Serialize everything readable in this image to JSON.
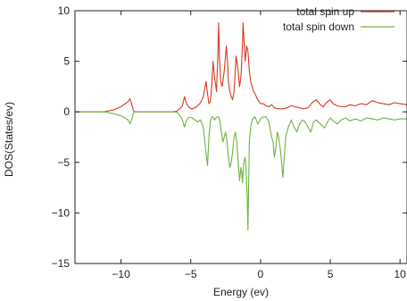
{
  "chart_data": {
    "type": "line",
    "title": "",
    "xlabel": "Energy (ev)",
    "ylabel": "DOS(States/ev)",
    "xlim": [
      -13.3,
      10.5
    ],
    "ylim": [
      -15,
      10
    ],
    "xticks": [
      -10,
      -5,
      0,
      5,
      10
    ],
    "yticks": [
      -15,
      -10,
      -5,
      0,
      5,
      10
    ],
    "grid": false,
    "legend": "top-right",
    "series": [
      {
        "name": "total spin up",
        "color": "#d43a1e",
        "x": [
          -13.3,
          -11.2,
          -10.5,
          -10.0,
          -9.7,
          -9.5,
          -9.35,
          -9.2,
          -9.1,
          -9.0,
          -8.9,
          -7.0,
          -6.3,
          -6.0,
          -5.8,
          -5.6,
          -5.45,
          -5.3,
          -5.1,
          -4.9,
          -4.7,
          -4.5,
          -4.3,
          -4.1,
          -3.9,
          -3.8,
          -3.7,
          -3.6,
          -3.5,
          -3.4,
          -3.3,
          -3.15,
          -3.05,
          -3.0,
          -2.95,
          -2.85,
          -2.75,
          -2.6,
          -2.45,
          -2.35,
          -2.3,
          -2.2,
          -2.1,
          -2.0,
          -1.9,
          -1.75,
          -1.6,
          -1.5,
          -1.4,
          -1.3,
          -1.25,
          -1.2,
          -1.1,
          -1.0,
          -0.9,
          -0.8,
          -0.7,
          -0.6,
          -0.5,
          -0.4,
          -0.3,
          -0.2,
          -0.1,
          0.0,
          0.2,
          0.4,
          0.6,
          0.8,
          1.0,
          1.3,
          1.6,
          1.9,
          2.2,
          2.5,
          2.8,
          3.1,
          3.4,
          3.7,
          4.0,
          4.3,
          4.5,
          4.6,
          4.8,
          5.0,
          5.2,
          5.5,
          5.8,
          6.1,
          6.4,
          6.8,
          7.2,
          7.6,
          8.0,
          8.4,
          8.8,
          9.2,
          9.6,
          10.0,
          10.5
        ],
        "y": [
          0,
          0,
          0.2,
          0.5,
          0.8,
          1.0,
          1.3,
          0.6,
          0.1,
          0,
          0,
          0,
          0,
          0.05,
          0.3,
          0.6,
          1.5,
          0.8,
          0.4,
          0.3,
          0.4,
          0.6,
          0.9,
          1.5,
          3.0,
          1.8,
          0.8,
          1.0,
          2.5,
          5.0,
          3.5,
          2.0,
          6.0,
          8.8,
          5.5,
          3.0,
          2.5,
          4.0,
          6.5,
          4.5,
          3.0,
          2.0,
          1.5,
          1.2,
          2.0,
          5.5,
          4.0,
          2.5,
          3.5,
          6.5,
          8.8,
          7.5,
          5.0,
          6.5,
          6.0,
          4.0,
          3.0,
          2.5,
          2.0,
          1.8,
          1.5,
          1.2,
          1.0,
          0.8,
          0.8,
          0.6,
          0.5,
          0.7,
          0.4,
          0.3,
          0.3,
          0.4,
          0.6,
          0.5,
          0.4,
          0.3,
          0.4,
          0.9,
          1.2,
          0.7,
          0.5,
          0.7,
          1.0,
          1.2,
          0.8,
          0.6,
          0.5,
          0.5,
          0.7,
          0.6,
          0.8,
          0.7,
          1.1,
          0.9,
          0.8,
          0.7,
          0.9,
          0.8,
          0.7
        ]
      },
      {
        "name": "total spin down",
        "color": "#6db33f",
        "x": [
          -13.3,
          -11.2,
          -10.5,
          -10.0,
          -9.7,
          -9.5,
          -9.35,
          -9.2,
          -9.1,
          -9.0,
          -8.9,
          -7.0,
          -6.3,
          -6.0,
          -5.8,
          -5.6,
          -5.45,
          -5.3,
          -5.1,
          -4.9,
          -4.7,
          -4.5,
          -4.3,
          -4.1,
          -3.95,
          -3.8,
          -3.7,
          -3.6,
          -3.5,
          -3.4,
          -3.3,
          -3.2,
          -3.1,
          -3.0,
          -2.9,
          -2.8,
          -2.7,
          -2.6,
          -2.5,
          -2.4,
          -2.3,
          -2.2,
          -2.1,
          -2.0,
          -1.9,
          -1.8,
          -1.7,
          -1.6,
          -1.5,
          -1.4,
          -1.35,
          -1.3,
          -1.2,
          -1.1,
          -1.05,
          -1.0,
          -0.95,
          -0.9,
          -0.85,
          -0.8,
          -0.7,
          -0.6,
          -0.5,
          -0.4,
          -0.3,
          -0.2,
          -0.1,
          0.0,
          0.2,
          0.4,
          0.6,
          0.8,
          0.9,
          1.0,
          1.1,
          1.2,
          1.3,
          1.45,
          1.6,
          1.7,
          1.8,
          1.9,
          2.0,
          2.2,
          2.4,
          2.6,
          2.8,
          3.0,
          3.2,
          3.4,
          3.6,
          3.8,
          4.0,
          4.3,
          4.6,
          4.8,
          5.0,
          5.2,
          5.5,
          5.8,
          6.1,
          6.4,
          6.8,
          7.2,
          7.6,
          8.0,
          8.4,
          8.8,
          9.2,
          9.6,
          10.0,
          10.5
        ],
        "y": [
          0,
          0,
          -0.2,
          -0.4,
          -0.6,
          -0.8,
          -1.2,
          -0.6,
          -0.1,
          0,
          0,
          0,
          0,
          -0.05,
          -0.3,
          -0.8,
          -1.5,
          -0.8,
          -0.5,
          -0.6,
          -0.8,
          -1.0,
          -0.8,
          -1.5,
          -3.5,
          -5.3,
          -2.5,
          -1.0,
          -0.5,
          -0.5,
          -0.8,
          -0.6,
          -0.5,
          -0.5,
          -1.0,
          -2.0,
          -3.0,
          -2.5,
          -2.0,
          -3.0,
          -4.5,
          -5.5,
          -5.0,
          -4.0,
          -2.5,
          -2.0,
          -3.0,
          -5.0,
          -6.8,
          -5.5,
          -6.0,
          -7.0,
          -5.0,
          -4.5,
          -5.5,
          -7.0,
          -8.5,
          -11.7,
          -7.0,
          -3.0,
          -1.5,
          -0.8,
          -0.6,
          -0.5,
          -0.8,
          -1.2,
          -1.0,
          -0.7,
          -0.5,
          -0.5,
          -1.0,
          -2.5,
          -3.0,
          -4.5,
          -3.5,
          -2.0,
          -2.5,
          -4.0,
          -6.5,
          -4.5,
          -2.5,
          -2.0,
          -1.5,
          -0.8,
          -1.5,
          -2.0,
          -1.2,
          -0.8,
          -1.0,
          -1.5,
          -2.0,
          -1.0,
          -0.8,
          -1.2,
          -1.6,
          -1.0,
          -0.6,
          -0.9,
          -1.2,
          -0.8,
          -0.6,
          -0.9,
          -0.7,
          -0.9,
          -0.6,
          -0.7,
          -0.8,
          -0.6,
          -0.7,
          -0.8,
          -0.7,
          -0.7
        ]
      }
    ]
  }
}
